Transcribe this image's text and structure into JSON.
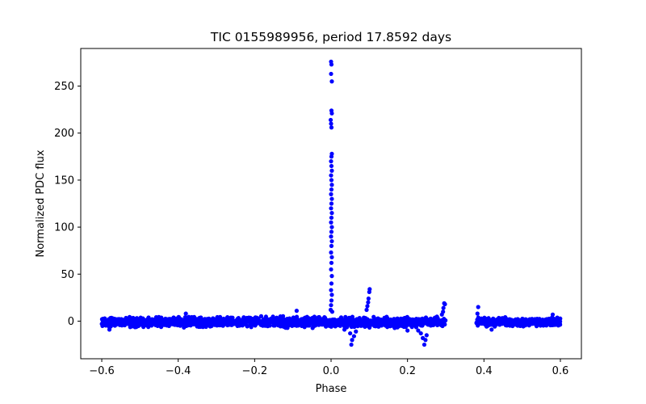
{
  "chart_data": {
    "type": "scatter",
    "title": "TIC 0155989956, period 17.8592 days",
    "xlabel": "Phase",
    "ylabel": "Normalized PDC flux",
    "xlim": [
      -0.655,
      0.655
    ],
    "ylim": [
      -40,
      290
    ],
    "xticks": [
      -0.6,
      -0.4,
      -0.2,
      0.0,
      0.2,
      0.4,
      0.6
    ],
    "xtick_labels": [
      "−0.6",
      "−0.4",
      "−0.2",
      "0.0",
      "0.2",
      "0.4",
      "0.6"
    ],
    "yticks": [
      0,
      50,
      100,
      150,
      200,
      250
    ],
    "ytick_labels": [
      "0",
      "50",
      "100",
      "150",
      "200",
      "250"
    ],
    "grid": false,
    "marker_color": "#0000ff",
    "series": [
      {
        "name": "PDC flux",
        "baseline_segments": [
          {
            "x_range": [
              -0.6,
              0.3
            ],
            "y_center": -1,
            "y_spread": 6
          },
          {
            "x_range": [
              0.38,
              0.6
            ],
            "y_center": -1,
            "y_spread": 5
          }
        ],
        "points": [
          {
            "x": 0.0,
            "y": 276
          },
          {
            "x": 0.001,
            "y": 273
          },
          {
            "x": 0.0,
            "y": 263
          },
          {
            "x": 0.002,
            "y": 255
          },
          {
            "x": 0.001,
            "y": 224
          },
          {
            "x": 0.002,
            "y": 221
          },
          {
            "x": -0.001,
            "y": 214
          },
          {
            "x": 0.0,
            "y": 210
          },
          {
            "x": 0.001,
            "y": 206
          },
          {
            "x": 0.002,
            "y": 178
          },
          {
            "x": 0.001,
            "y": 175
          },
          {
            "x": 0.0,
            "y": 170
          },
          {
            "x": 0.001,
            "y": 165
          },
          {
            "x": 0.002,
            "y": 160
          },
          {
            "x": 0.0,
            "y": 155
          },
          {
            "x": 0.001,
            "y": 150
          },
          {
            "x": 0.002,
            "y": 145
          },
          {
            "x": 0.001,
            "y": 140
          },
          {
            "x": 0.0,
            "y": 135
          },
          {
            "x": 0.002,
            "y": 130
          },
          {
            "x": 0.001,
            "y": 125
          },
          {
            "x": 0.0,
            "y": 120
          },
          {
            "x": 0.002,
            "y": 115
          },
          {
            "x": 0.001,
            "y": 110
          },
          {
            "x": 0.0,
            "y": 105
          },
          {
            "x": 0.002,
            "y": 100
          },
          {
            "x": 0.001,
            "y": 95
          },
          {
            "x": 0.0,
            "y": 90
          },
          {
            "x": 0.002,
            "y": 85
          },
          {
            "x": 0.001,
            "y": 80
          },
          {
            "x": 0.0,
            "y": 73
          },
          {
            "x": 0.002,
            "y": 68
          },
          {
            "x": 0.001,
            "y": 62
          },
          {
            "x": 0.0,
            "y": 55
          },
          {
            "x": 0.002,
            "y": 48
          },
          {
            "x": 0.001,
            "y": 40
          },
          {
            "x": 0.0,
            "y": 33
          },
          {
            "x": 0.002,
            "y": 28
          },
          {
            "x": 0.001,
            "y": 22
          },
          {
            "x": 0.0,
            "y": 17
          },
          {
            "x": -0.001,
            "y": 12
          },
          {
            "x": 0.003,
            "y": 10
          },
          {
            "x": 0.101,
            "y": 34
          },
          {
            "x": 0.1,
            "y": 31
          },
          {
            "x": 0.098,
            "y": 24
          },
          {
            "x": 0.097,
            "y": 20
          },
          {
            "x": 0.095,
            "y": 16
          },
          {
            "x": 0.093,
            "y": 12
          },
          {
            "x": 0.296,
            "y": 19
          },
          {
            "x": 0.298,
            "y": 18
          },
          {
            "x": 0.294,
            "y": 14
          },
          {
            "x": 0.293,
            "y": 10
          },
          {
            "x": 0.29,
            "y": 7
          },
          {
            "x": 0.385,
            "y": 15
          },
          {
            "x": 0.383,
            "y": 8
          },
          {
            "x": -0.09,
            "y": 11
          },
          {
            "x": -0.38,
            "y": 8
          },
          {
            "x": -0.58,
            "y": -9
          },
          {
            "x": 0.053,
            "y": -25
          },
          {
            "x": 0.055,
            "y": -20
          },
          {
            "x": 0.06,
            "y": -16
          },
          {
            "x": 0.05,
            "y": -13
          },
          {
            "x": 0.065,
            "y": -11
          },
          {
            "x": 0.035,
            "y": -9
          },
          {
            "x": 0.2,
            "y": -10
          },
          {
            "x": 0.244,
            "y": -25
          },
          {
            "x": 0.247,
            "y": -20
          },
          {
            "x": 0.24,
            "y": -18
          },
          {
            "x": 0.25,
            "y": -15
          },
          {
            "x": 0.235,
            "y": -13
          },
          {
            "x": 0.228,
            "y": -10
          },
          {
            "x": 0.42,
            "y": -9
          },
          {
            "x": 0.58,
            "y": 7
          }
        ]
      }
    ]
  }
}
